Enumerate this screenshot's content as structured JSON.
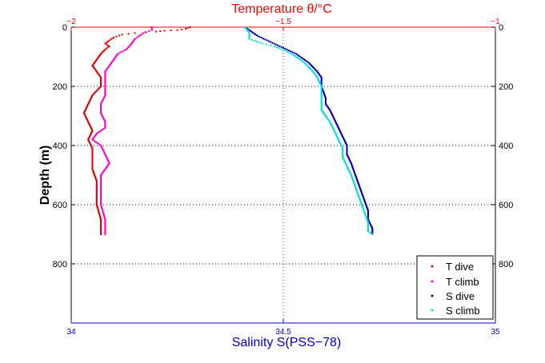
{
  "chart_data": {
    "type": "scatter",
    "title": "Temperature θ/°C",
    "xlabel": "Salinity S(PSS−78)",
    "ylabel": "Depth (m)",
    "top_axis": {
      "label": "Temperature θ/°C",
      "ticks": [
        -2,
        -1.5,
        -1
      ],
      "tick_labels": [
        "−2",
        "−1.5",
        "−1"
      ],
      "range": [
        -2,
        -1
      ],
      "color": "#ff0000"
    },
    "bottom_axis": {
      "label": "Salinity S(PSS−78)",
      "ticks": [
        34,
        34.5,
        35
      ],
      "tick_labels": [
        "34",
        "34.5",
        "35"
      ],
      "range": [
        34,
        35
      ],
      "color": "#0000cc"
    },
    "y_axis": {
      "ticks": [
        0,
        200,
        400,
        600,
        800
      ],
      "tick_labels": [
        "0",
        "200",
        "400",
        "600",
        "800"
      ],
      "range": [
        1000,
        0
      ],
      "reversed": true
    },
    "grid": "dotted",
    "legend_position": "bottom-right",
    "series": [
      {
        "name": "T dive",
        "axis": "temperature",
        "marker": "dot",
        "color": "#dd0000",
        "points": [
          [
            -1.72,
            0
          ],
          [
            -1.73,
            5
          ],
          [
            -1.75,
            10
          ],
          [
            -1.78,
            12
          ],
          [
            -1.8,
            15
          ],
          [
            -1.85,
            20
          ],
          [
            -1.88,
            25
          ],
          [
            -1.9,
            35
          ],
          [
            -1.91,
            45
          ],
          [
            -1.92,
            55
          ],
          [
            -1.91,
            65
          ],
          [
            -1.92,
            75
          ],
          [
            -1.93,
            90
          ],
          [
            -1.94,
            110
          ],
          [
            -1.95,
            130
          ],
          [
            -1.94,
            150
          ],
          [
            -1.93,
            170
          ],
          [
            -1.93,
            200
          ],
          [
            -1.95,
            230
          ],
          [
            -1.96,
            260
          ],
          [
            -1.97,
            290
          ],
          [
            -1.96,
            320
          ],
          [
            -1.95,
            350
          ],
          [
            -1.96,
            380
          ],
          [
            -1.95,
            410
          ],
          [
            -1.95,
            440
          ],
          [
            -1.95,
            480
          ],
          [
            -1.94,
            520
          ],
          [
            -1.94,
            560
          ],
          [
            -1.94,
            600
          ],
          [
            -1.93,
            650
          ],
          [
            -1.93,
            700
          ]
        ]
      },
      {
        "name": "T climb",
        "axis": "temperature",
        "marker": "dot",
        "color": "#ff00cc",
        "points": [
          [
            -1.81,
            0
          ],
          [
            -1.81,
            10
          ],
          [
            -1.83,
            20
          ],
          [
            -1.84,
            30
          ],
          [
            -1.85,
            40
          ],
          [
            -1.86,
            60
          ],
          [
            -1.87,
            75
          ],
          [
            -1.89,
            90
          ],
          [
            -1.9,
            110
          ],
          [
            -1.91,
            130
          ],
          [
            -1.92,
            150
          ],
          [
            -1.92,
            170
          ],
          [
            -1.92,
            200
          ],
          [
            -1.92,
            230
          ],
          [
            -1.93,
            260
          ],
          [
            -1.93,
            290
          ],
          [
            -1.92,
            320
          ],
          [
            -1.92,
            340
          ],
          [
            -1.94,
            360
          ],
          [
            -1.95,
            380
          ],
          [
            -1.93,
            400
          ],
          [
            -1.92,
            430
          ],
          [
            -1.91,
            460
          ],
          [
            -1.92,
            480
          ],
          [
            -1.93,
            500
          ],
          [
            -1.93,
            530
          ],
          [
            -1.93,
            560
          ],
          [
            -1.93,
            600
          ],
          [
            -1.92,
            650
          ],
          [
            -1.92,
            700
          ]
        ]
      },
      {
        "name": "S dive",
        "axis": "salinity",
        "marker": "dot",
        "color": "#0000bb",
        "points": [
          [
            34.41,
            0
          ],
          [
            34.42,
            10
          ],
          [
            34.44,
            30
          ],
          [
            34.47,
            50
          ],
          [
            34.5,
            70
          ],
          [
            34.53,
            90
          ],
          [
            34.56,
            120
          ],
          [
            34.58,
            150
          ],
          [
            34.59,
            170
          ],
          [
            34.59,
            200
          ],
          [
            34.6,
            240
          ],
          [
            34.6,
            260
          ],
          [
            34.61,
            280
          ],
          [
            34.62,
            310
          ],
          [
            34.63,
            340
          ],
          [
            34.64,
            370
          ],
          [
            34.65,
            400
          ],
          [
            34.65,
            430
          ],
          [
            34.66,
            460
          ],
          [
            34.67,
            500
          ],
          [
            34.68,
            540
          ],
          [
            34.69,
            580
          ],
          [
            34.7,
            620
          ],
          [
            34.7,
            650
          ],
          [
            34.71,
            680
          ],
          [
            34.71,
            700
          ]
        ]
      },
      {
        "name": "S climb",
        "axis": "salinity",
        "marker": "dot",
        "color": "#00dddd",
        "points": [
          [
            34.41,
            0
          ],
          [
            34.42,
            20
          ],
          [
            34.42,
            40
          ],
          [
            34.45,
            55
          ],
          [
            34.48,
            65
          ],
          [
            34.52,
            90
          ],
          [
            34.55,
            120
          ],
          [
            34.57,
            150
          ],
          [
            34.58,
            170
          ],
          [
            34.59,
            200
          ],
          [
            34.59,
            240
          ],
          [
            34.59,
            280
          ],
          [
            34.6,
            300
          ],
          [
            34.61,
            320
          ],
          [
            34.62,
            350
          ],
          [
            34.63,
            380
          ],
          [
            34.64,
            410
          ],
          [
            34.64,
            440
          ],
          [
            34.65,
            470
          ],
          [
            34.66,
            500
          ],
          [
            34.67,
            540
          ],
          [
            34.68,
            580
          ],
          [
            34.69,
            620
          ],
          [
            34.7,
            660
          ],
          [
            34.7,
            690
          ],
          [
            34.71,
            700
          ]
        ]
      }
    ]
  }
}
